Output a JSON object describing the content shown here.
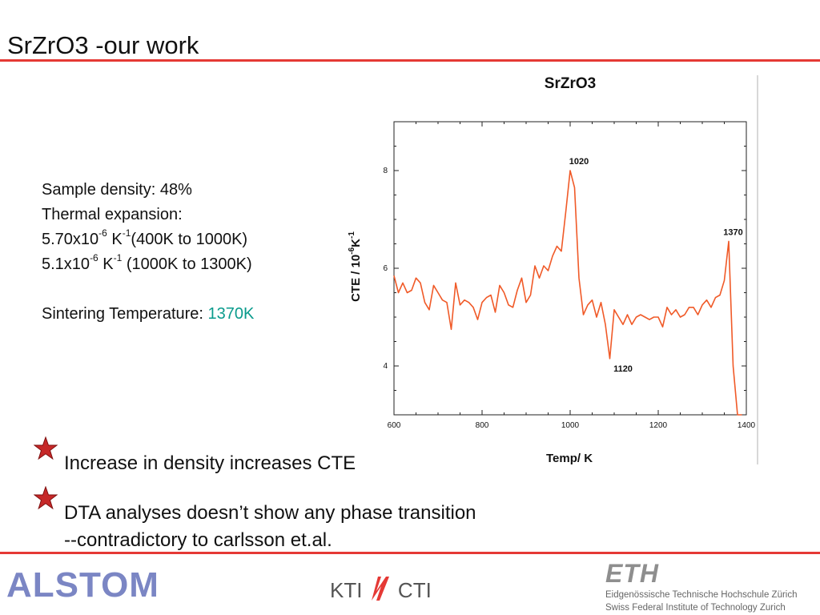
{
  "slide": {
    "title": "SrZrO3 -our work",
    "accent_color": "#e53935",
    "highlight_color": "#0a9b8c"
  },
  "info": {
    "density": "Sample density: 48%",
    "thermal_label": "Thermal expansion:",
    "cte1_mantissa": "5.70x10",
    "cte1_exp": "-6",
    "cte1_unit": " K",
    "cte1_unit_exp": "-1",
    "cte1_range": "(400K to 1000K)",
    "cte2_mantissa": "5.1x10",
    "cte2_exp": "-6",
    "cte2_unit": " K",
    "cte2_unit_exp": "-1",
    "cte2_range": " (1000K to 1300K)",
    "sinter_label": "Sintering Temperature: ",
    "sinter_value": "1370K"
  },
  "bullets": [
    {
      "icon": "red-star-icon",
      "text": "Increase in density increases CTE"
    },
    {
      "icon": "red-star-icon",
      "text": "DTA analyses doesn’t show any phase transition\n--contradictory to carlsson et.al."
    }
  ],
  "chart_data": {
    "type": "line",
    "title": "SrZrO3",
    "xlabel": "Temp/ K",
    "ylabel_main": "CTE / 10",
    "ylabel_exp1": "-6",
    "ylabel_unit": "K",
    "ylabel_exp2": "-1",
    "xlim": [
      600,
      1400
    ],
    "ylim": [
      3,
      9
    ],
    "xticks": [
      600,
      800,
      1000,
      1200,
      1400
    ],
    "yticks": [
      4,
      6,
      8
    ],
    "grid": false,
    "line_color": "#f05a28",
    "annotations": [
      {
        "text": "1020",
        "x": 1020,
        "y": 8.0
      },
      {
        "text": "1370",
        "x": 1370,
        "y": 6.55
      },
      {
        "text": "1120",
        "x": 1120,
        "y": 4.15
      }
    ],
    "series": [
      {
        "x": [
          600,
          610,
          620,
          630,
          640,
          650,
          660,
          670,
          680,
          690,
          700,
          710,
          720,
          730,
          740,
          750,
          760,
          770,
          780,
          790,
          800,
          810,
          820,
          830,
          840,
          850,
          860,
          870,
          880,
          890,
          900,
          910,
          920,
          930,
          940,
          950,
          960,
          970,
          980,
          990,
          1000,
          1010,
          1020,
          1030,
          1040,
          1050,
          1060,
          1070,
          1080,
          1090,
          1100,
          1110,
          1120,
          1130,
          1140,
          1150,
          1160,
          1170,
          1180,
          1190,
          1200,
          1210,
          1220,
          1230,
          1240,
          1250,
          1260,
          1270,
          1280,
          1290,
          1300,
          1310,
          1320,
          1330,
          1340,
          1350,
          1360,
          1370,
          1380,
          1385,
          1390
        ],
        "values": [
          5.85,
          5.5,
          5.7,
          5.5,
          5.55,
          5.8,
          5.7,
          5.3,
          5.15,
          5.65,
          5.5,
          5.35,
          5.3,
          4.75,
          5.7,
          5.25,
          5.35,
          5.3,
          5.2,
          4.95,
          5.3,
          5.4,
          5.45,
          5.1,
          5.65,
          5.5,
          5.25,
          5.2,
          5.55,
          5.8,
          5.3,
          5.45,
          6.05,
          5.8,
          6.05,
          5.95,
          6.25,
          6.45,
          6.35,
          7.15,
          8.0,
          7.65,
          5.8,
          5.05,
          5.25,
          5.35,
          5.0,
          5.3,
          4.85,
          4.15,
          5.15,
          5.0,
          4.85,
          5.05,
          4.85,
          5.0,
          5.05,
          5.0,
          4.95,
          5.0,
          5.0,
          4.8,
          5.2,
          5.05,
          5.15,
          5.0,
          5.05,
          5.2,
          5.2,
          5.05,
          5.25,
          5.35,
          5.2,
          5.4,
          5.45,
          5.75,
          6.55,
          4.0,
          3.0,
          3.0,
          3.0
        ]
      }
    ]
  },
  "logos": {
    "alstom": "ALSTOM",
    "kti": "KTI",
    "cti": "CTI",
    "eth_mark": "ETH",
    "eth_line1": "Eidgenössische Technische Hochschule Zürich",
    "eth_line2": "Swiss Federal Institute of Technology Zurich"
  }
}
